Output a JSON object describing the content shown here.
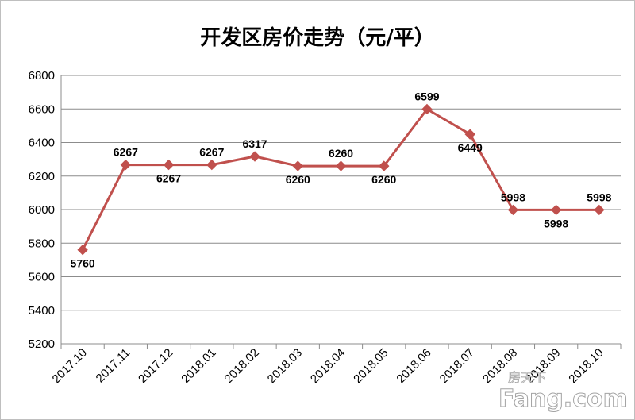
{
  "chart_data": {
    "type": "line",
    "title": "开发区房价走势（元/平）",
    "categories": [
      "2017.10",
      "2017.11",
      "2017.12",
      "2018.01",
      "2018.02",
      "2018.03",
      "2018.04",
      "2018.05",
      "2018.06",
      "2018.07",
      "2018.08",
      "2018.09",
      "2018.10"
    ],
    "series": [
      {
        "values": [
          5760,
          6267,
          6267,
          6267,
          6317,
          6260,
          6260,
          6260,
          6599,
          6449,
          5998,
          5998,
          5998
        ]
      }
    ],
    "data_labels": [
      "5760",
      "6267",
      "6267",
      "6267",
      "6317",
      "6260",
      "6260",
      "6260",
      "6599",
      "6449",
      "5998",
      "5998",
      "5998"
    ],
    "data_label_positions": [
      "below",
      "above",
      "below",
      "above",
      "above",
      "below",
      "above",
      "below",
      "above",
      "below",
      "above",
      "below",
      "above"
    ],
    "ylim": [
      5200,
      6800
    ],
    "yticks": [
      5200,
      5400,
      5600,
      5800,
      6000,
      6200,
      6400,
      6600,
      6800
    ],
    "grid": true,
    "line_color": "#c0504d",
    "marker": "diamond"
  },
  "watermark": {
    "cn": "房天下",
    "en": "Fang.com"
  }
}
